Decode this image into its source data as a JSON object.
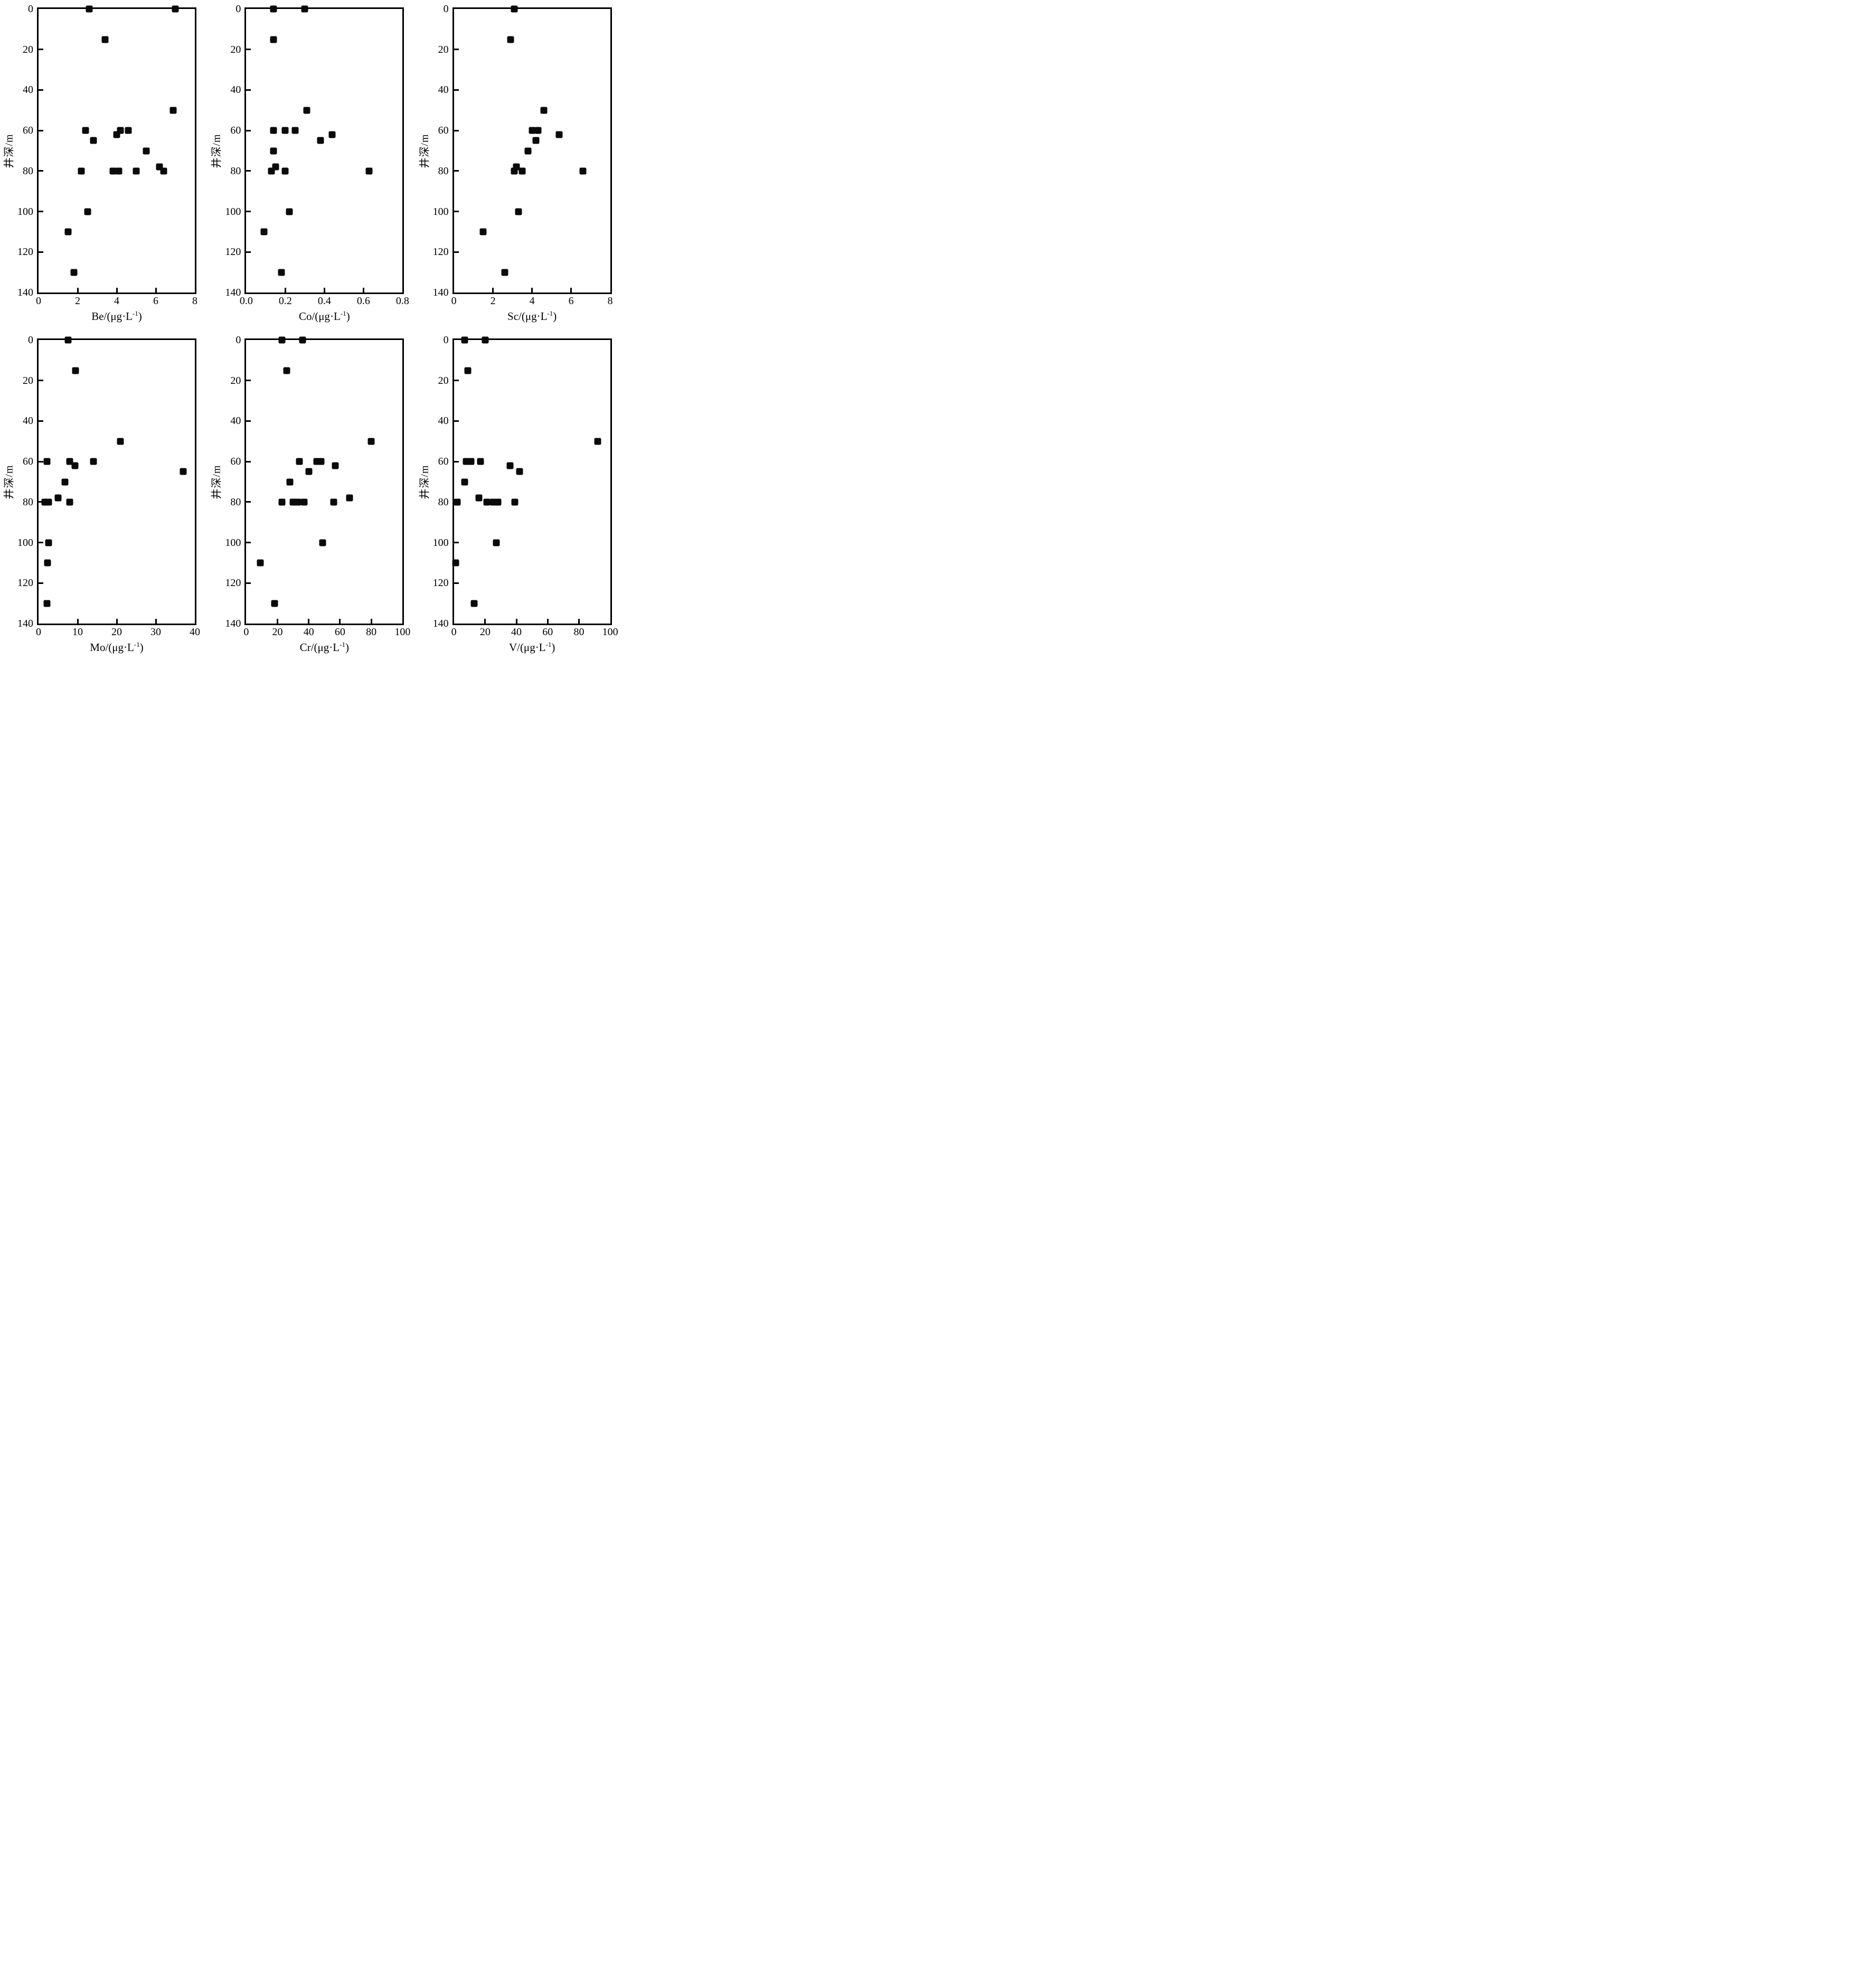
{
  "page": {
    "background": "#ffffff",
    "marker_color": "#0a0a0a",
    "axis_color": "#000000",
    "marker_shape": "filled-square"
  },
  "y_axis": {
    "label": "井深/m",
    "ticks": [
      "0",
      "20",
      "40",
      "60",
      "80",
      "100",
      "120",
      "140"
    ],
    "lim": [
      0,
      140
    ],
    "inverted": true
  },
  "chart_data": [
    {
      "type": "scatter",
      "element": "Be",
      "xlabel_base": "Be/(μg·L",
      "xlabel_sup": "-1",
      "xlabel_end": ")",
      "xlim": [
        0,
        8
      ],
      "xticks": [
        "0",
        "2",
        "4",
        "6",
        "8"
      ],
      "ylabel": "井深/m",
      "ylim": [
        0,
        140
      ],
      "grid": false,
      "legend": "none",
      "points": [
        [
          2.6,
          0
        ],
        [
          7.0,
          0
        ],
        [
          3.4,
          15
        ],
        [
          6.9,
          50
        ],
        [
          2.4,
          60
        ],
        [
          4.2,
          60
        ],
        [
          4.6,
          60
        ],
        [
          4.0,
          62
        ],
        [
          2.8,
          65
        ],
        [
          5.5,
          70
        ],
        [
          6.2,
          78
        ],
        [
          2.2,
          80
        ],
        [
          3.8,
          80
        ],
        [
          4.1,
          80
        ],
        [
          5.0,
          80
        ],
        [
          6.4,
          80
        ],
        [
          2.5,
          100
        ],
        [
          1.5,
          110
        ],
        [
          1.8,
          130
        ]
      ]
    },
    {
      "type": "scatter",
      "element": "Co",
      "xlabel_base": "Co/(μg·L",
      "xlabel_sup": "-1",
      "xlabel_end": ")",
      "xlim": [
        0,
        0.8
      ],
      "xticks": [
        "0.0",
        "0.2",
        "0.4",
        "0.6",
        "0.8"
      ],
      "ylabel": "井深/m",
      "ylim": [
        0,
        140
      ],
      "grid": false,
      "legend": "none",
      "points": [
        [
          0.14,
          0
        ],
        [
          0.3,
          0
        ],
        [
          0.14,
          15
        ],
        [
          0.31,
          50
        ],
        [
          0.14,
          60
        ],
        [
          0.2,
          60
        ],
        [
          0.25,
          60
        ],
        [
          0.44,
          62
        ],
        [
          0.38,
          65
        ],
        [
          0.14,
          70
        ],
        [
          0.15,
          78
        ],
        [
          0.13,
          80
        ],
        [
          0.2,
          80
        ],
        [
          0.63,
          80
        ],
        [
          0.22,
          100
        ],
        [
          0.09,
          110
        ],
        [
          0.18,
          130
        ]
      ]
    },
    {
      "type": "scatter",
      "element": "Sc",
      "xlabel_base": "Sc/(μg·L",
      "xlabel_sup": "-1",
      "xlabel_end": ")",
      "xlim": [
        0,
        8
      ],
      "xticks": [
        "0",
        "2",
        "4",
        "6",
        "8"
      ],
      "ylabel": "井深/m",
      "ylim": [
        0,
        140
      ],
      "grid": false,
      "legend": "none",
      "points": [
        [
          3.1,
          0
        ],
        [
          2.9,
          15
        ],
        [
          4.6,
          50
        ],
        [
          4.0,
          60
        ],
        [
          4.3,
          60
        ],
        [
          5.4,
          62
        ],
        [
          4.2,
          65
        ],
        [
          3.8,
          70
        ],
        [
          3.2,
          78
        ],
        [
          3.1,
          80
        ],
        [
          3.5,
          80
        ],
        [
          6.6,
          80
        ],
        [
          3.3,
          100
        ],
        [
          1.5,
          110
        ],
        [
          2.6,
          130
        ]
      ]
    },
    {
      "type": "scatter",
      "element": "Mo",
      "xlabel_base": "Mo/(μg·L",
      "xlabel_sup": "-1",
      "xlabel_end": ")",
      "xlim": [
        0,
        40
      ],
      "xticks": [
        "0",
        "10",
        "20",
        "30",
        "40"
      ],
      "ylabel": "井深/m",
      "ylim": [
        0,
        140
      ],
      "grid": false,
      "legend": "none",
      "points": [
        [
          7.6,
          0
        ],
        [
          9.5,
          15
        ],
        [
          21,
          50
        ],
        [
          2.2,
          60
        ],
        [
          8,
          60
        ],
        [
          14,
          60
        ],
        [
          9.3,
          62
        ],
        [
          37,
          65
        ],
        [
          6.7,
          70
        ],
        [
          5,
          78
        ],
        [
          1.6,
          80
        ],
        [
          2.5,
          80
        ],
        [
          8,
          80
        ],
        [
          2.6,
          100
        ],
        [
          2.3,
          110
        ],
        [
          2.1,
          130
        ]
      ]
    },
    {
      "type": "scatter",
      "element": "Cr",
      "xlabel_base": "Cr/(μg·L",
      "xlabel_sup": "-1",
      "xlabel_end": ")",
      "xlim": [
        0,
        100
      ],
      "xticks": [
        "0",
        "20",
        "40",
        "60",
        "80",
        "100"
      ],
      "ylabel": "井深/m",
      "ylim": [
        0,
        140
      ],
      "grid": false,
      "legend": "none",
      "points": [
        [
          23,
          0
        ],
        [
          36,
          0
        ],
        [
          26,
          15
        ],
        [
          80,
          50
        ],
        [
          34,
          60
        ],
        [
          45,
          60
        ],
        [
          48,
          60
        ],
        [
          57,
          62
        ],
        [
          40,
          65
        ],
        [
          28,
          70
        ],
        [
          66,
          78
        ],
        [
          23,
          80
        ],
        [
          30,
          80
        ],
        [
          33,
          80
        ],
        [
          37,
          80
        ],
        [
          56,
          80
        ],
        [
          49,
          100
        ],
        [
          9,
          110
        ],
        [
          18,
          130
        ]
      ]
    },
    {
      "type": "scatter",
      "element": "V",
      "xlabel_base": "V/(μg·L",
      "xlabel_sup": "-1",
      "xlabel_end": ")",
      "xlim": [
        0,
        100
      ],
      "xticks": [
        "0",
        "20",
        "40",
        "60",
        "80",
        "100"
      ],
      "ylabel": "井深/m",
      "ylim": [
        0,
        140
      ],
      "grid": false,
      "legend": "none",
      "points": [
        [
          7,
          0
        ],
        [
          20,
          0
        ],
        [
          9,
          15
        ],
        [
          92,
          50
        ],
        [
          8,
          60
        ],
        [
          11,
          60
        ],
        [
          17,
          60
        ],
        [
          36,
          62
        ],
        [
          42,
          65
        ],
        [
          7,
          70
        ],
        [
          16,
          78
        ],
        [
          2,
          80
        ],
        [
          21,
          80
        ],
        [
          25,
          80
        ],
        [
          28,
          80
        ],
        [
          39,
          80
        ],
        [
          27,
          100
        ],
        [
          1,
          110
        ],
        [
          13,
          130
        ]
      ]
    }
  ]
}
